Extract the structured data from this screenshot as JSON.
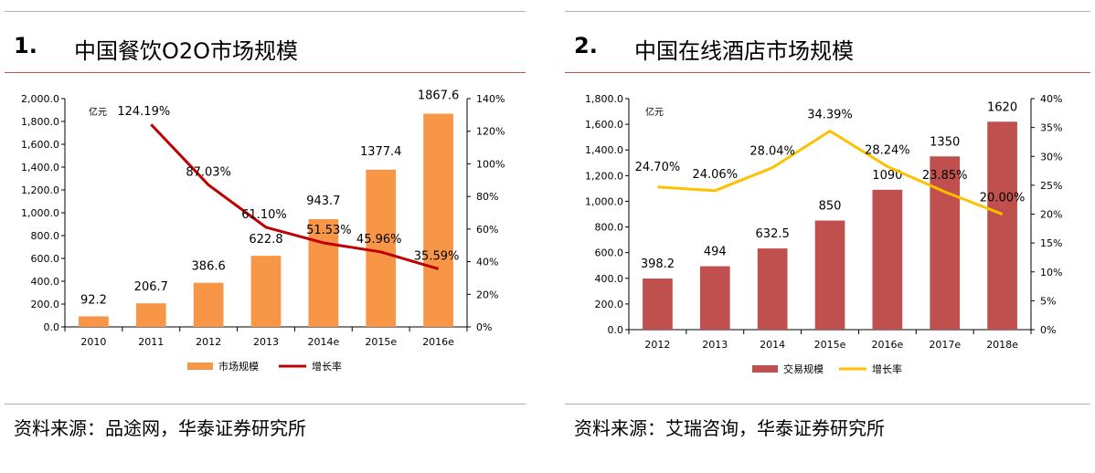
{
  "charts": [
    {
      "number": "1.",
      "title": "中国餐饮O2O市场规模",
      "source": "资料来源：品途网，华泰证券研究所",
      "chart_data": {
        "type": "bar",
        "categories": [
          "2010",
          "2011",
          "2012",
          "2013",
          "2014e",
          "2015e",
          "2016e"
        ],
        "series": [
          {
            "name": "市场规模",
            "type": "bar",
            "axis": "left",
            "color": "#f79646",
            "values": [
              92.2,
              206.7,
              386.6,
              622.8,
              943.7,
              1377.4,
              1867.6
            ],
            "labels": [
              "92.2",
              "206.7",
              "386.6",
              "622.8",
              "943.7",
              "1377.4",
              "1867.6"
            ]
          },
          {
            "name": "增长率",
            "type": "line",
            "axis": "right",
            "color": "#c00000",
            "values": [
              null,
              124.19,
              87.03,
              61.1,
              51.53,
              45.96,
              35.59
            ],
            "labels": [
              "",
              "124.19%",
              "87.03%",
              "61.10%",
              "51.53%",
              "45.96%",
              "35.59%"
            ]
          }
        ],
        "unit_label": "亿元",
        "ylim": [
          0,
          2000
        ],
        "y_ticks": [
          "0.0",
          "200.0",
          "400.0",
          "600.0",
          "800.0",
          "1,000.0",
          "1,200.0",
          "1,400.0",
          "1,600.0",
          "1,800.0",
          "2,000.0"
        ],
        "y2lim": [
          0,
          140
        ],
        "y2_ticks": [
          "0%",
          "20%",
          "40%",
          "60%",
          "80%",
          "100%",
          "120%",
          "140%"
        ],
        "legend_position": "bottom",
        "grid": false
      }
    },
    {
      "number": "2.",
      "title": "中国在线酒店市场规模",
      "source": "资料来源：艾瑞咨询，华泰证券研究所",
      "chart_data": {
        "type": "bar",
        "categories": [
          "2012",
          "2013",
          "2014",
          "2015e",
          "2016e",
          "2017e",
          "2018e"
        ],
        "series": [
          {
            "name": "交易规模",
            "type": "bar",
            "axis": "left",
            "color": "#c0504d",
            "values": [
              398.2,
              494,
              632.5,
              850,
              1090,
              1350,
              1620
            ],
            "labels": [
              "398.2",
              "494",
              "632.5",
              "850",
              "1090",
              "1350",
              "1620"
            ]
          },
          {
            "name": "增长率",
            "type": "line",
            "axis": "right",
            "color": "#ffc000",
            "values": [
              24.7,
              24.06,
              28.04,
              34.39,
              28.24,
              23.85,
              20.0
            ],
            "labels": [
              "24.70%",
              "24.06%",
              "28.04%",
              "34.39%",
              "28.24%",
              "23.85%",
              "20.00%"
            ]
          }
        ],
        "unit_label": "亿元",
        "ylim": [
          0,
          1800
        ],
        "y_ticks": [
          "0.0",
          "200.0",
          "400.0",
          "600.0",
          "800.0",
          "1,000.0",
          "1,200.0",
          "1,400.0",
          "1,600.0",
          "1,800.0"
        ],
        "y2lim": [
          0,
          40
        ],
        "y2_ticks": [
          "0%",
          "5%",
          "10%",
          "15%",
          "20%",
          "25%",
          "30%",
          "35%",
          "40%"
        ],
        "legend_position": "bottom",
        "grid": false
      }
    }
  ]
}
